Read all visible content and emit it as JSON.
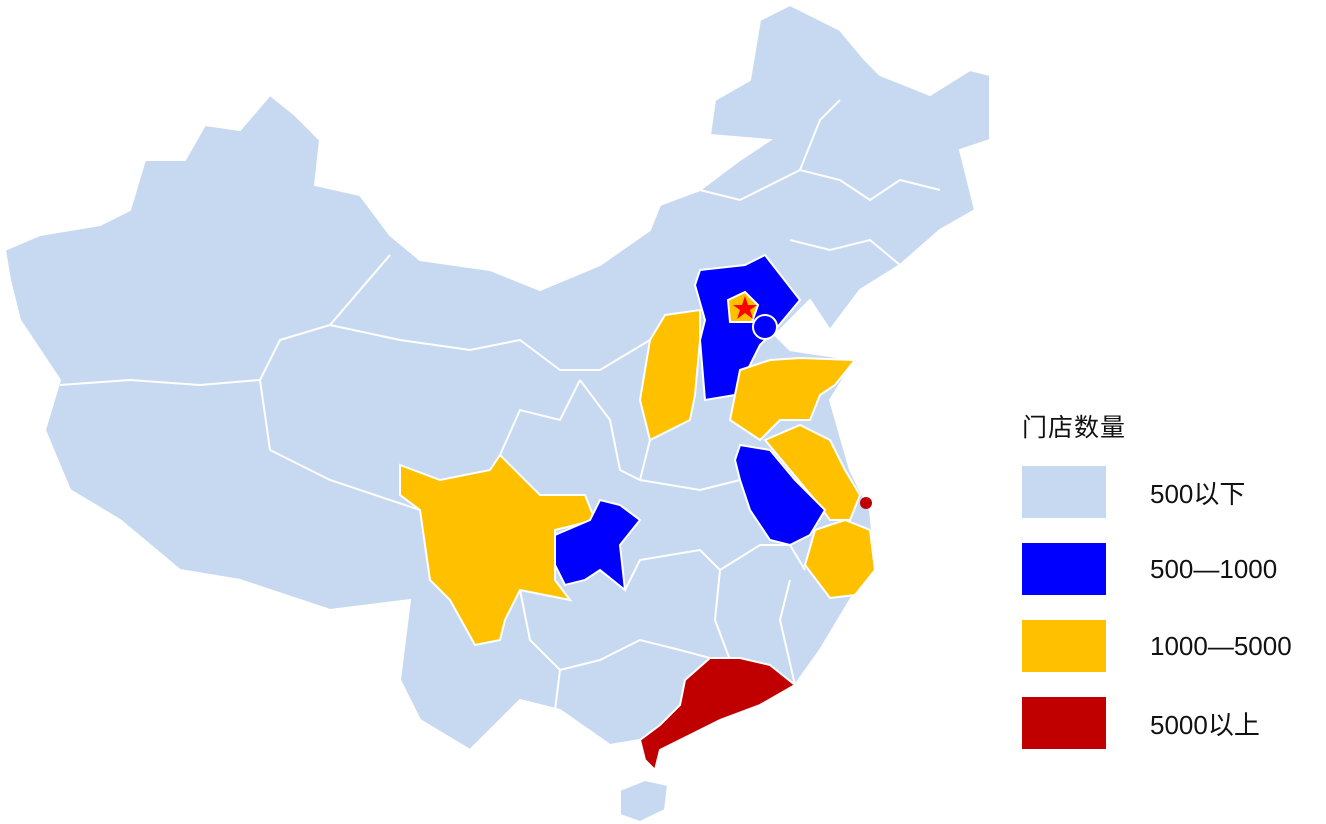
{
  "legend": {
    "title": "门店数量",
    "items": [
      {
        "label": "500以下",
        "color": "#c6d9f1"
      },
      {
        "label": "500—1000",
        "color": "#0000ff"
      },
      {
        "label": "1000—5000",
        "color": "#ffc000"
      },
      {
        "label": "5000以上",
        "color": "#c00000"
      }
    ]
  },
  "regions": [
    {
      "name": "hebei",
      "category": 1
    },
    {
      "name": "beijing",
      "category": 2
    },
    {
      "name": "tianjin",
      "category": 1
    },
    {
      "name": "shanxi",
      "category": 2
    },
    {
      "name": "shandong",
      "category": 2
    },
    {
      "name": "jiangsu",
      "category": 2
    },
    {
      "name": "anhui",
      "category": 1
    },
    {
      "name": "shanghai",
      "category": 3
    },
    {
      "name": "zhejiang",
      "category": 2
    },
    {
      "name": "sichuan",
      "category": 2
    },
    {
      "name": "chongqing",
      "category": 1
    },
    {
      "name": "guangdong",
      "category": 3
    },
    {
      "name": "hainan",
      "category": 0
    }
  ],
  "capital_marker": {
    "icon": "star-icon",
    "color": "#ff0000"
  }
}
